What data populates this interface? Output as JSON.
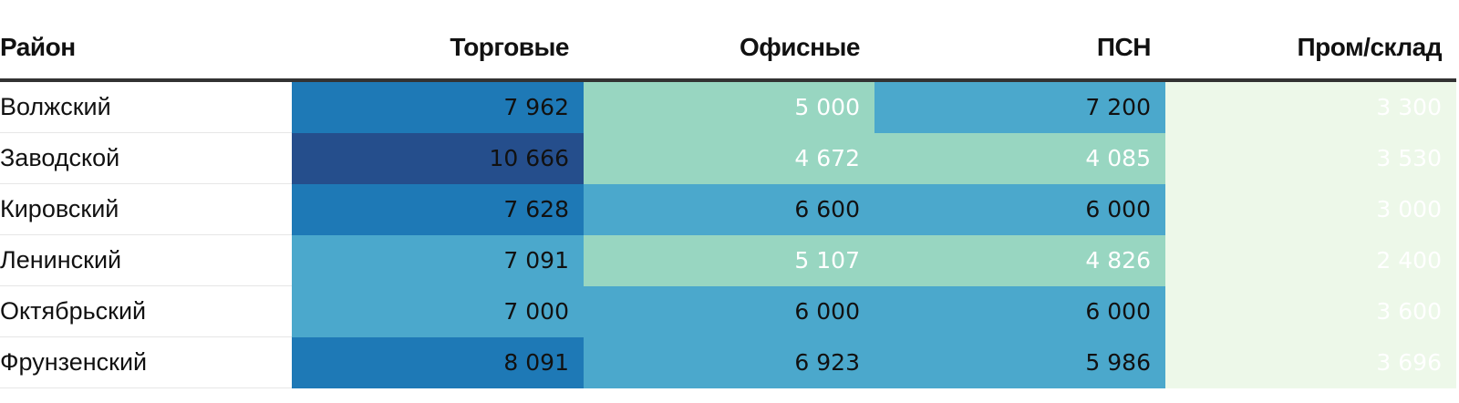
{
  "chart_data": {
    "type": "table",
    "columns": [
      "Район",
      "Торговые",
      "Офисные",
      "ПСН",
      "Пром/склад"
    ],
    "rows": [
      {
        "district": "Волжский",
        "values": [
          7962,
          5000,
          7200,
          3300
        ],
        "labels": [
          "7 962",
          "5 000",
          "7 200",
          "3 300"
        ]
      },
      {
        "district": "Заводской",
        "values": [
          10666,
          4672,
          4085,
          3530
        ],
        "labels": [
          "10 666",
          "4 672",
          "4 085",
          "3 530"
        ]
      },
      {
        "district": "Кировский",
        "values": [
          7628,
          6600,
          6000,
          3000
        ],
        "labels": [
          "7 628",
          "6 600",
          "6 000",
          "3 000"
        ]
      },
      {
        "district": "Ленинский",
        "values": [
          7091,
          5107,
          4826,
          2400
        ],
        "labels": [
          "7 091",
          "5 107",
          "4 826",
          "2 400"
        ]
      },
      {
        "district": "Октябрьский",
        "values": [
          7000,
          6000,
          6000,
          3600
        ],
        "labels": [
          "7 000",
          "6 000",
          "6 000",
          "3 600"
        ]
      },
      {
        "district": "Фрунзенский",
        "values": [
          8091,
          6923,
          5986,
          3696
        ],
        "labels": [
          "8 091",
          "6 923",
          "5 986",
          "3 696"
        ]
      }
    ],
    "color_scale": {
      "bins": [
        {
          "min": 0,
          "max": 4000,
          "color": "#edf8e9",
          "text": "dark"
        },
        {
          "min": 4000,
          "max": 5500,
          "color": "#98d6c1",
          "text": "dark"
        },
        {
          "min": 5500,
          "max": 7500,
          "color": "#4ba8cc",
          "text": "light"
        },
        {
          "min": 7500,
          "max": 10000,
          "color": "#1e79b6",
          "text": "light"
        },
        {
          "min": 10000,
          "max": 20000,
          "color": "#254e8c",
          "text": "light"
        }
      ]
    }
  }
}
